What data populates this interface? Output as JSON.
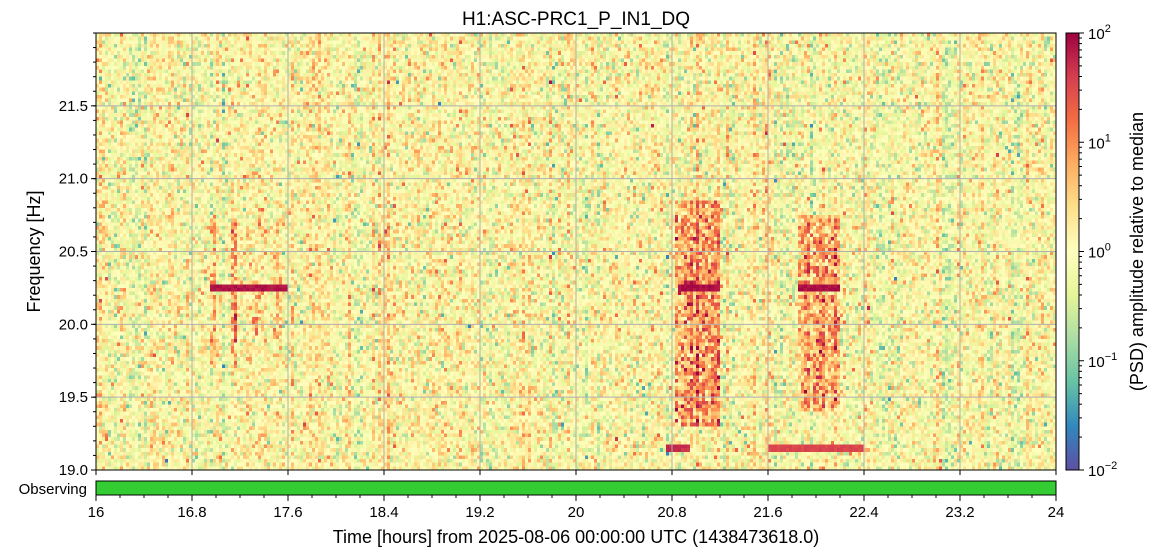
{
  "chart_data": {
    "type": "heatmap",
    "title": "H1:ASC-PRC1_P_IN1_DQ",
    "xlabel": "Time [hours] from 2025-08-06 00:00:00 UTC (1438473618.0)",
    "ylabel": "Frequency [Hz]",
    "xlim": [
      16,
      24
    ],
    "ylim": [
      19.0,
      22.0
    ],
    "x_ticks": [
      "16",
      "16.8",
      "17.6",
      "18.4",
      "19.2",
      "20",
      "20.8",
      "21.6",
      "22.4",
      "23.2",
      "24"
    ],
    "y_ticks": [
      "19.0",
      "19.5",
      "20.0",
      "20.5",
      "21.0",
      "21.5"
    ],
    "grid": true,
    "colorbar": {
      "label": "(PSD) amplitude relative to median",
      "scale": "log",
      "range": [
        0.01,
        100
      ],
      "ticks": [
        {
          "value": 0.01,
          "base": "10",
          "exp": "−2"
        },
        {
          "value": 0.1,
          "base": "10",
          "exp": "−1"
        },
        {
          "value": 1,
          "base": "10",
          "exp": "0"
        },
        {
          "value": 10,
          "base": "10",
          "exp": "1"
        },
        {
          "value": 100,
          "base": "10",
          "exp": "2"
        }
      ],
      "colors": [
        "#5e4fa2",
        "#3288bd",
        "#66c2a5",
        "#abdda4",
        "#e6f598",
        "#ffffbf",
        "#fee08b",
        "#fdae61",
        "#f46d43",
        "#d53e4f",
        "#9e0142"
      ]
    },
    "background_level": 1,
    "features": [
      {
        "kind": "burst",
        "t_start": 16.95,
        "t_end": 17.0,
        "f_low": 19.7,
        "f_high": 20.75,
        "level": 15
      },
      {
        "kind": "burst",
        "t_start": 17.12,
        "t_end": 17.18,
        "f_low": 19.7,
        "f_high": 20.75,
        "level": 15
      },
      {
        "kind": "burst",
        "t_start": 17.3,
        "t_end": 17.35,
        "f_low": 19.9,
        "f_high": 20.4,
        "level": 8
      },
      {
        "kind": "burst",
        "t_start": 17.48,
        "t_end": 17.55,
        "f_low": 19.9,
        "f_high": 20.5,
        "level": 8
      },
      {
        "kind": "burst",
        "t_start": 20.82,
        "t_end": 21.2,
        "f_low": 19.3,
        "f_high": 20.85,
        "level": 20
      },
      {
        "kind": "burst",
        "t_start": 21.85,
        "t_end": 22.2,
        "f_low": 19.4,
        "f_high": 20.75,
        "level": 20
      },
      {
        "kind": "line",
        "t_start": 16.95,
        "t_end": 17.6,
        "freq": 20.25,
        "level": 90
      },
      {
        "kind": "line",
        "t_start": 20.85,
        "t_end": 21.2,
        "freq": 20.25,
        "level": 95
      },
      {
        "kind": "line",
        "t_start": 21.85,
        "t_end": 22.2,
        "freq": 20.25,
        "level": 95
      },
      {
        "kind": "line",
        "t_start": 20.75,
        "t_end": 20.95,
        "freq": 19.15,
        "level": 60
      },
      {
        "kind": "line",
        "t_start": 21.6,
        "t_end": 22.4,
        "freq": 19.15,
        "level": 40
      }
    ],
    "state_bar": {
      "label": "Observing",
      "color": "#33cc33",
      "segments": [
        {
          "start": 16,
          "end": 24,
          "state": "Observing"
        }
      ]
    }
  }
}
